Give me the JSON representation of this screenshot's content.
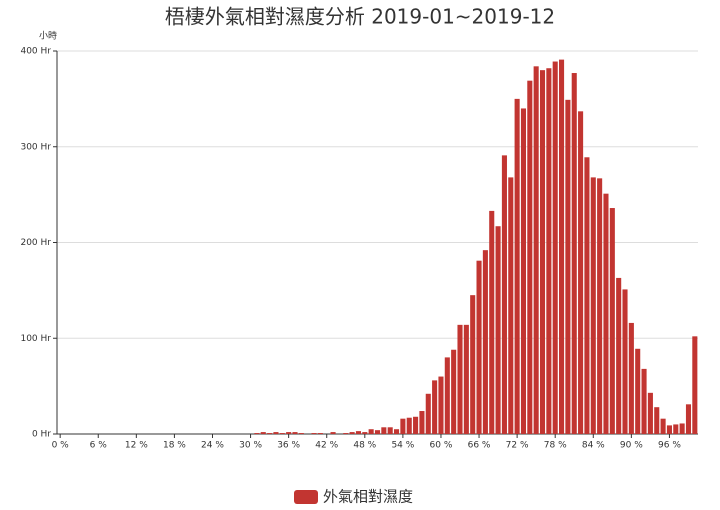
{
  "chart_data": {
    "type": "bar",
    "title": "梧棲外氣相對濕度分析 2019-01~2019-12",
    "y_label": "小時",
    "categories": [
      "0 %",
      null,
      null,
      null,
      null,
      null,
      "6 %",
      null,
      null,
      null,
      null,
      null,
      "12 %",
      null,
      null,
      null,
      null,
      null,
      "18 %",
      null,
      null,
      null,
      null,
      null,
      "24 %",
      null,
      null,
      null,
      null,
      null,
      "30 %",
      null,
      null,
      null,
      null,
      null,
      "36 %",
      null,
      null,
      null,
      null,
      null,
      "42 %",
      null,
      null,
      null,
      null,
      null,
      "48 %",
      null,
      null,
      null,
      null,
      null,
      "54 %",
      null,
      null,
      null,
      null,
      null,
      "60 %",
      null,
      null,
      null,
      null,
      null,
      "66 %",
      null,
      null,
      null,
      null,
      null,
      "72 %",
      null,
      null,
      null,
      null,
      null,
      "78 %",
      null,
      null,
      null,
      null,
      null,
      "84 %",
      null,
      null,
      null,
      null,
      null,
      "90 %",
      null,
      null,
      null,
      null,
      null,
      "96 %",
      null,
      null,
      null,
      null
    ],
    "series": [
      {
        "name": "外氣相對濕度",
        "color": "#c23531",
        "values": [
          0,
          0,
          0,
          0,
          0,
          0,
          0,
          0,
          0,
          0,
          0,
          0,
          0,
          0,
          0,
          0,
          0,
          0,
          0,
          0,
          0,
          0,
          0,
          0,
          0,
          0,
          0,
          0,
          0,
          0,
          0,
          1,
          2,
          1,
          2,
          1,
          2,
          2,
          1,
          0,
          1,
          1,
          0,
          2,
          0,
          1,
          2,
          3,
          2,
          5,
          4,
          7,
          7,
          5,
          16,
          17,
          18,
          24,
          42,
          56,
          60,
          80,
          88,
          114,
          114,
          145,
          181,
          192,
          233,
          217,
          291,
          268,
          350,
          340,
          369,
          384,
          380,
          382,
          389,
          391,
          349,
          377,
          337,
          289,
          268,
          267,
          251,
          236,
          163,
          151,
          116,
          89,
          68,
          43,
          28,
          16,
          9,
          10,
          11,
          31,
          102
        ]
      }
    ],
    "ylim": [
      0,
      400
    ],
    "yticks": [
      {
        "value": 0,
        "label": "0 Hr"
      },
      {
        "value": 100,
        "label": "100 Hr"
      },
      {
        "value": 200,
        "label": "200 Hr"
      },
      {
        "value": 300,
        "label": "300 Hr"
      },
      {
        "value": 400,
        "label": "400 Hr"
      }
    ],
    "grid": true
  }
}
